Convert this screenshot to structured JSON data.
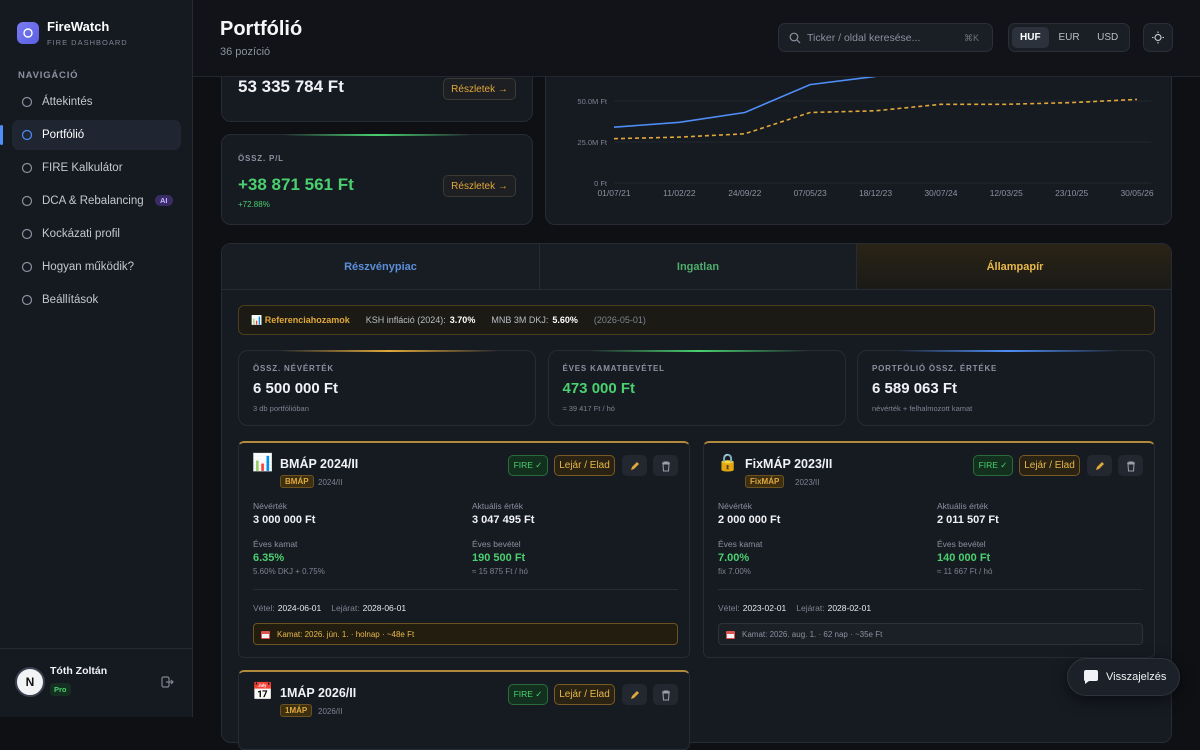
{
  "sidebar": {
    "brand": "FireWatch",
    "brand_subtitle": "FIRE DASHBOARD",
    "nav_heading": "NAVIGÁCIÓ",
    "nav": [
      {
        "label": "Áttekintés"
      },
      {
        "label": "Portfólió",
        "active": true
      },
      {
        "label": "FIRE Kalkulátor"
      },
      {
        "label": "DCA & Rebalancing",
        "badge": "AI"
      },
      {
        "label": "Kockázati profil"
      },
      {
        "label": "Hogyan működik?"
      },
      {
        "label": "Beállítások"
      }
    ],
    "user": {
      "initial": "N",
      "name": "Tóth Zoltán",
      "plan": "Pro"
    }
  },
  "header": {
    "title": "Portfólió",
    "subtitle": "36 pozíció",
    "search_placeholder": "Ticker / oldal keresése...",
    "shortcut": "⌘K",
    "currencies": [
      "HUF",
      "EUR",
      "USD"
    ],
    "active_currency": 0
  },
  "summary": [
    {
      "value": "53 335 784 Ft",
      "button": "Részletek →"
    },
    {
      "label": "ÖSSZ. P/L",
      "value": "+38 871 561 Ft",
      "change": "+72.88%",
      "button": "Részletek →"
    }
  ],
  "chart_data": {
    "type": "line",
    "categories": [
      "01/07/21",
      "11/02/22",
      "24/09/22",
      "07/05/23",
      "18/12/23",
      "30/07/24",
      "12/03/25",
      "23/10/25",
      "30/05/26"
    ],
    "series": [
      {
        "color": "#4f8ef7",
        "values": [
          34000000,
          37000000,
          43000000,
          60000000,
          65000000,
          null,
          null,
          null,
          null
        ]
      },
      {
        "color": "#e0a83a",
        "dashed": true,
        "values": [
          27000000,
          28000000,
          30000000,
          43000000,
          44000000,
          48000000,
          48000000,
          49000000,
          51000000
        ]
      }
    ],
    "ylim": [
      0,
      75000000
    ],
    "yticks": [
      {
        "value": 0,
        "label": "0 Ft"
      },
      {
        "value": 25000000,
        "label": "25.0M Ft"
      },
      {
        "value": 50000000,
        "label": "50.0M Ft"
      }
    ],
    "grid": true
  },
  "tabs": [
    {
      "label": "Részvénypiac",
      "color": "#5b8fd9"
    },
    {
      "label": "Ingatlan",
      "color": "#4fae6c"
    },
    {
      "label": "Állampapír",
      "color": "#e8b84a",
      "active": true
    }
  ],
  "reference": {
    "title": "📊 Referenciahozamok",
    "items": [
      {
        "label": "KSH infláció (2024):",
        "value": "3.70%"
      },
      {
        "label": "MNB 3M DKJ:",
        "value": "5.60%"
      }
    ],
    "date": "(2026-05-01)"
  },
  "stats": [
    {
      "label": "ÖSSZ. NÉVÉRTÉK",
      "value": "6 500 000 Ft",
      "note": "3 db portfólióban",
      "accent": "#e0a83a"
    },
    {
      "label": "ÉVES KAMATBEVÉTEL",
      "value": "473 000 Ft",
      "note": "≈ 39 417 Ft / hó",
      "accent": "#4ad06f",
      "green": true
    },
    {
      "label": "PORTFÓLIÓ ÖSSZ. ÉRTÉKE",
      "value": "6 589 063 Ft",
      "note": "névérték + felhalmozott kamat",
      "accent": "#4f8ef7"
    }
  ],
  "bonds": [
    {
      "icon": "📊",
      "name": "BMÁP 2024/II",
      "tag": "BMÁP",
      "series": "2024/II",
      "fire": "FIRE ✓",
      "action": "Lejár / Elad",
      "fields": [
        {
          "label": "Névérték",
          "value": "3 000 000 Ft"
        },
        {
          "label": "Aktuális érték",
          "value": "3 047 495 Ft"
        },
        {
          "label": "Éves kamat",
          "value": "6.35%",
          "note": "5.60% DKJ + 0.75%"
        },
        {
          "label": "Éves bevétel",
          "value": "190 500 Ft",
          "note": "≈ 15 875 Ft / hó"
        }
      ],
      "dates": [
        {
          "label": "Vétel:",
          "value": "2024-06-01"
        },
        {
          "label": "Lejárat:",
          "value": "2028-06-01"
        }
      ],
      "notice": {
        "text": "Kamat: 2026. jún. 1. · holnap · ~48e Ft",
        "highlight": true
      }
    },
    {
      "icon": "🔒",
      "name": "FixMÁP 2023/II",
      "tag": "FixMÁP",
      "series": "2023/II",
      "fire": "FIRE ✓",
      "action": "Lejár / Elad",
      "fields": [
        {
          "label": "Névérték",
          "value": "2 000 000 Ft"
        },
        {
          "label": "Aktuális érték",
          "value": "2 011 507 Ft"
        },
        {
          "label": "Éves kamat",
          "value": "7.00%",
          "note": "fix 7.00%"
        },
        {
          "label": "Éves bevétel",
          "value": "140 000 Ft",
          "note": "≈ 11 667 Ft / hó"
        }
      ],
      "dates": [
        {
          "label": "Vétel:",
          "value": "2023-02-01"
        },
        {
          "label": "Lejárat:",
          "value": "2028-02-01"
        }
      ],
      "notice": {
        "text": "Kamat: 2026. aug. 1. · 62 nap · ~35e Ft",
        "highlight": false
      }
    },
    {
      "icon": "📅",
      "name": "1MÁP 2026/II",
      "tag": "1MÁP",
      "series": "2026/II",
      "fire": "FIRE ✓",
      "action": "Lejár / Elad"
    }
  ],
  "feedback": {
    "label": "Visszajelzés"
  }
}
